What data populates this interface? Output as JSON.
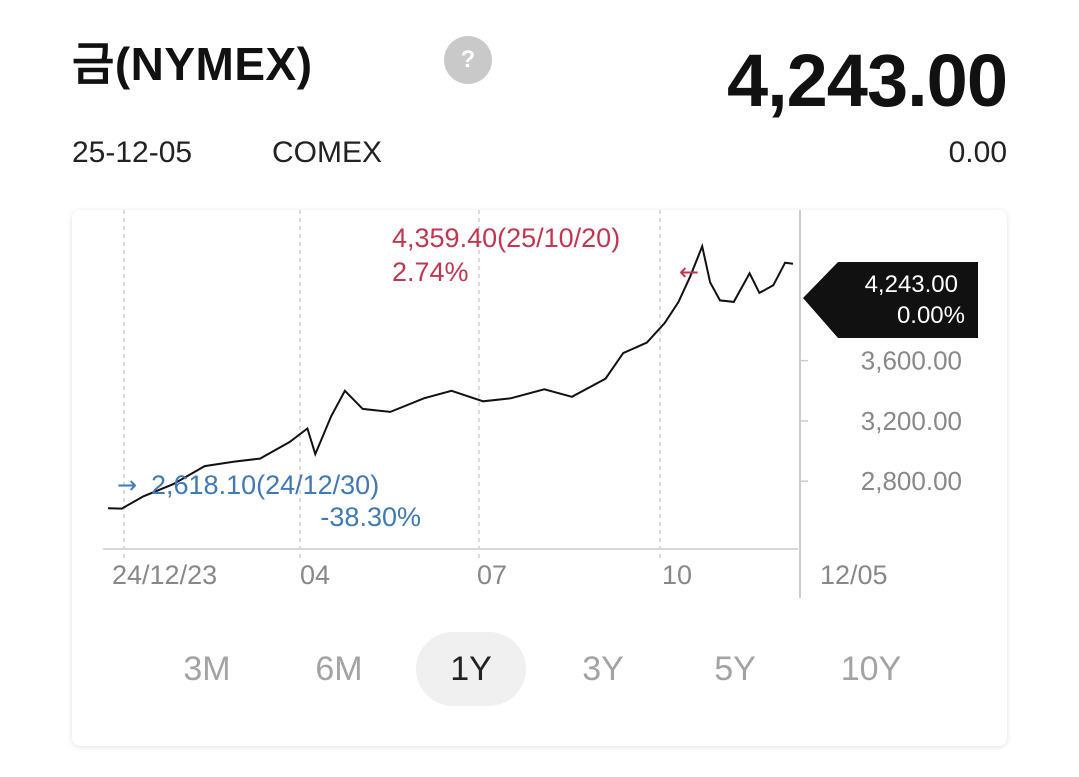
{
  "header": {
    "title": "금(NYMEX)",
    "help_symbol": "?",
    "price": "4,243.00",
    "date": "25-12-05",
    "exchange": "COMEX",
    "change": "0.00"
  },
  "colors": {
    "high": "#c4364f",
    "low": "#3f79b8",
    "line": "#111111",
    "tag_bg": "#111111",
    "axis_text": "#888888"
  },
  "chart_data": {
    "type": "line",
    "x_tick_labels": [
      "24/12/23",
      "04",
      "07",
      "10",
      "12/05"
    ],
    "y_tick_labels": [
      "3,600.00",
      "3,200.00",
      "2,800.00"
    ],
    "y_ticks": [
      3600,
      3200,
      2800
    ],
    "ylim": [
      2350,
      4600
    ],
    "grid": "vertical dashed",
    "series": [
      {
        "x": [
          "2024-12-23",
          "2024-12-30",
          "2025-01-10",
          "2025-01-25",
          "2025-02-10",
          "2025-02-25",
          "2025-03-10",
          "2025-03-25",
          "2025-04-03",
          "2025-04-07",
          "2025-04-15",
          "2025-04-22",
          "2025-05-01",
          "2025-05-15",
          "2025-06-01",
          "2025-06-15",
          "2025-07-01",
          "2025-07-15",
          "2025-08-01",
          "2025-08-15",
          "2025-09-01",
          "2025-09-10",
          "2025-09-22",
          "2025-10-01",
          "2025-10-08",
          "2025-10-14",
          "2025-10-20",
          "2025-10-24",
          "2025-10-29",
          "2025-11-05",
          "2025-11-13",
          "2025-11-18",
          "2025-11-25",
          "2025-12-01",
          "2025-12-05"
        ],
        "values": [
          2620,
          2618,
          2700,
          2780,
          2900,
          2930,
          2950,
          3060,
          3150,
          2980,
          3230,
          3400,
          3280,
          3260,
          3350,
          3400,
          3330,
          3350,
          3410,
          3360,
          3480,
          3650,
          3720,
          3850,
          3990,
          4160,
          4359,
          4120,
          4000,
          3990,
          4180,
          4050,
          4100,
          4250,
          4243
        ]
      }
    ],
    "annotations": {
      "high": {
        "label": "4,359.40(25/10/20)",
        "pct": "2.74%",
        "arrow": "←"
      },
      "low": {
        "label": "2,618.10(24/12/30)",
        "pct": "-38.30%",
        "arrow": "→"
      },
      "last": {
        "value": "4,243.00",
        "pct": "0.00%"
      }
    }
  },
  "periods": [
    "3M",
    "6M",
    "1Y",
    "3Y",
    "5Y",
    "10Y"
  ],
  "active_period": "1Y"
}
